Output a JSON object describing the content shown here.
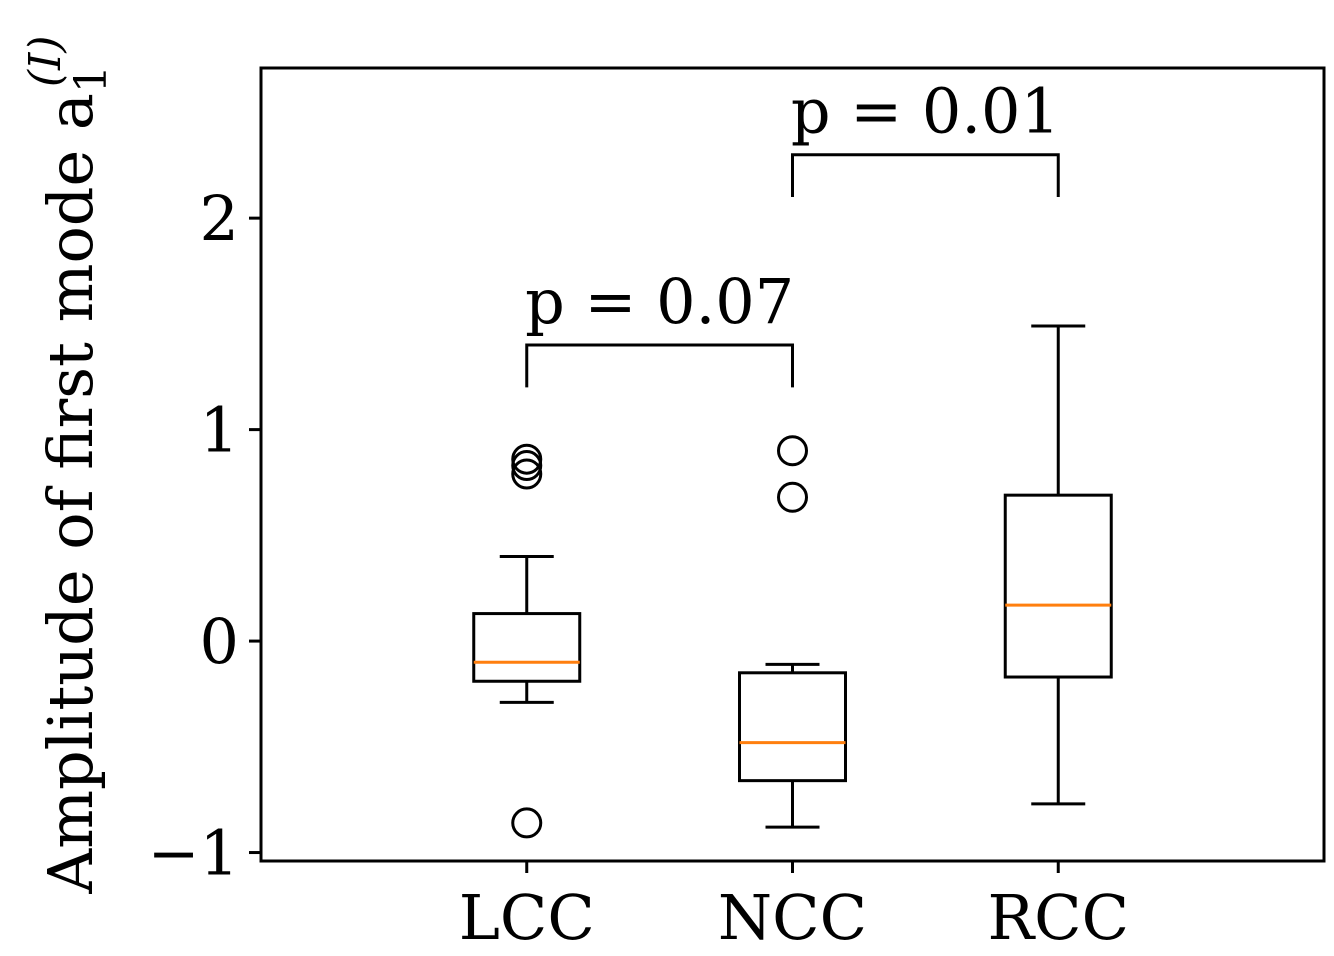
{
  "chart_data": {
    "type": "box",
    "categories": [
      "LCC",
      "NCC",
      "RCC"
    ],
    "boxes": [
      {
        "category": "LCC",
        "whisker_low": -0.29,
        "q1": -0.19,
        "median": -0.1,
        "q3": 0.13,
        "whisker_high": 0.4,
        "outliers": [
          0.86,
          0.83,
          0.79,
          -0.86
        ]
      },
      {
        "category": "NCC",
        "whisker_low": -0.88,
        "q1": -0.66,
        "median": -0.48,
        "q3": -0.15,
        "whisker_high": -0.11,
        "outliers": [
          0.9,
          0.68
        ]
      },
      {
        "category": "RCC",
        "whisker_low": -0.77,
        "q1": -0.17,
        "median": 0.17,
        "q3": 0.69,
        "whisker_high": 1.49,
        "outliers": []
      }
    ],
    "annotations": [
      {
        "from": "LCC",
        "to": "NCC",
        "y": 1.4,
        "drop": 0.2,
        "label": "p = 0.07"
      },
      {
        "from": "NCC",
        "to": "RCC",
        "y": 2.3,
        "drop": 0.2,
        "label": "p = 0.01"
      }
    ],
    "ylabel": "Amplitude of first mode a",
    "ylabel_sub": "1",
    "ylabel_sup": "(I)",
    "yticks": [
      -1,
      0,
      1,
      2
    ],
    "ytick_labels": [
      "−1",
      "0",
      "1",
      "2"
    ],
    "ylim": [
      -1.04,
      2.71
    ],
    "colors": {
      "median": "#ff7f0e",
      "box": "#000000"
    }
  }
}
